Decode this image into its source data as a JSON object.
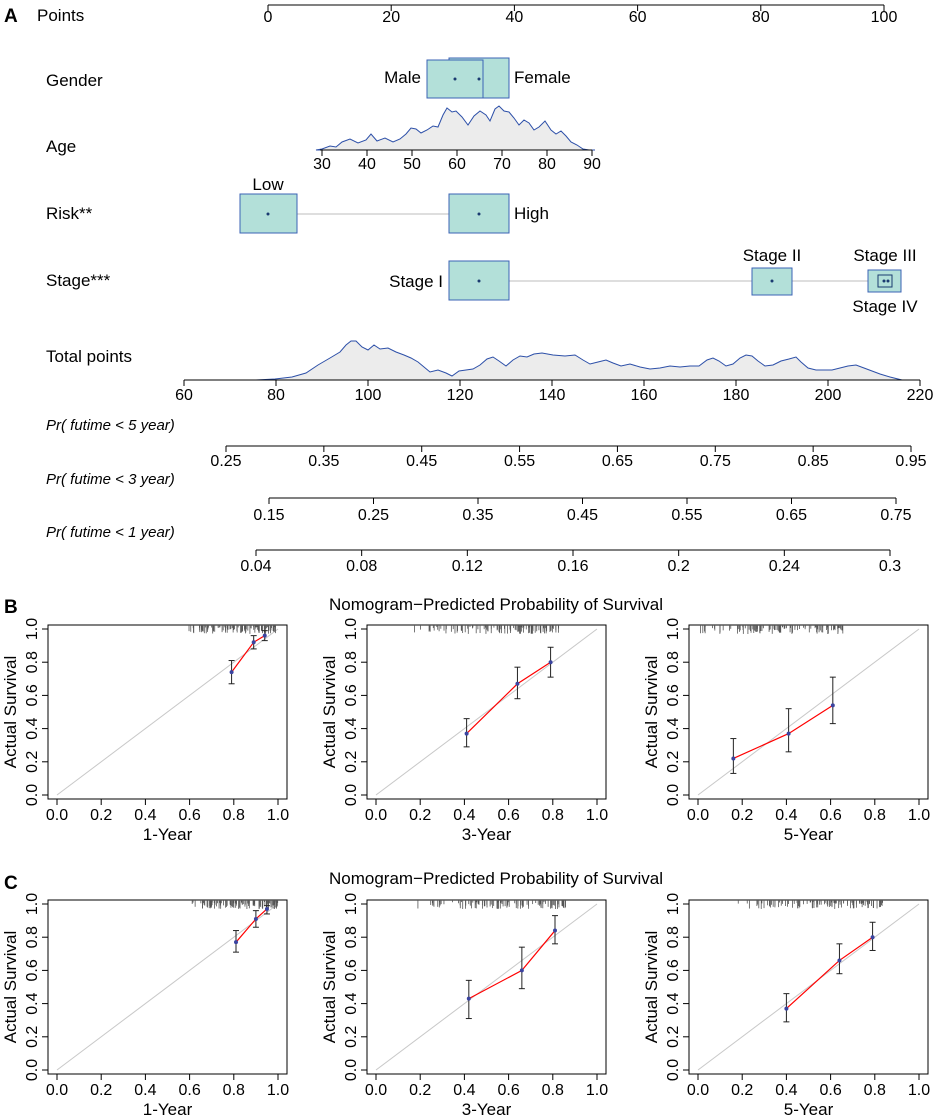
{
  "panel_letters": [
    "A",
    "B",
    "C"
  ],
  "nomogram": {
    "points_label": "Points",
    "points_ticks": [
      0,
      20,
      40,
      60,
      80,
      100
    ],
    "variables": [
      {
        "name": "Gender",
        "levels": [
          {
            "label": "Male",
            "points": 30
          },
          {
            "label": "Female",
            "points": 34
          }
        ]
      },
      {
        "name": "Age",
        "ticks": [
          30,
          40,
          50,
          60,
          70,
          80,
          90
        ],
        "points_range": [
          8,
          52
        ]
      },
      {
        "name": "Risk**",
        "levels": [
          {
            "label": "Low",
            "points": 0
          },
          {
            "label": "High",
            "points": 34
          }
        ]
      },
      {
        "name": "Stage***",
        "levels": [
          {
            "label": "Stage I",
            "points": 34
          },
          {
            "label": "Stage II",
            "points": 81
          },
          {
            "label": "Stage III",
            "points": 99
          },
          {
            "label": "Stage IV",
            "points": 100
          }
        ]
      }
    ],
    "total_points_label": "Total points",
    "total_points_ticks": [
      60,
      80,
      100,
      120,
      140,
      160,
      180,
      200,
      220
    ],
    "probabilities": [
      {
        "label": "Pr( futime < 5 year)",
        "ticks": [
          "0.25",
          "0.35",
          "0.45",
          "0.55",
          "0.65",
          "0.75",
          "0.85",
          "0.95"
        ]
      },
      {
        "label": "Pr( futime < 3 year)",
        "ticks": [
          "0.15",
          "0.25",
          "0.35",
          "0.45",
          "0.55",
          "0.65",
          "0.75"
        ]
      },
      {
        "label": "Pr( futime < 1 year)",
        "ticks": [
          "0.04",
          "0.08",
          "0.12",
          "0.16",
          "0.2",
          "0.24",
          "0.3"
        ]
      }
    ]
  },
  "calibration": {
    "row_title": "Nomogram−Predicted Probability of Survival",
    "ylabel": "Actual Survival",
    "axis_ticks": [
      "0.0",
      "0.2",
      "0.4",
      "0.6",
      "0.8",
      "1.0"
    ]
  },
  "chart_data": [
    {
      "type": "line",
      "panel": "B",
      "xlabel": "1-Year",
      "ylabel": "Actual Survival",
      "xlim": [
        0,
        1
      ],
      "ylim": [
        0,
        1
      ],
      "x": [
        0.79,
        0.89,
        0.94
      ],
      "y": [
        0.74,
        0.92,
        0.96
      ],
      "lower": [
        0.67,
        0.88,
        0.93
      ],
      "upper": [
        0.81,
        0.96,
        0.99
      ]
    },
    {
      "type": "line",
      "panel": "B",
      "xlabel": "3-Year",
      "ylabel": "Actual Survival",
      "xlim": [
        0,
        1
      ],
      "ylim": [
        0,
        1
      ],
      "x": [
        0.41,
        0.64,
        0.79
      ],
      "y": [
        0.37,
        0.67,
        0.8
      ],
      "lower": [
        0.29,
        0.58,
        0.71
      ],
      "upper": [
        0.46,
        0.77,
        0.89
      ]
    },
    {
      "type": "line",
      "panel": "B",
      "xlabel": "5-Year",
      "ylabel": "Actual Survival",
      "xlim": [
        0,
        1
      ],
      "ylim": [
        0,
        1
      ],
      "x": [
        0.16,
        0.41,
        0.61
      ],
      "y": [
        0.22,
        0.37,
        0.54
      ],
      "lower": [
        0.13,
        0.26,
        0.43
      ],
      "upper": [
        0.34,
        0.52,
        0.71
      ]
    },
    {
      "type": "line",
      "panel": "C",
      "xlabel": "1-Year",
      "ylabel": "Actual Survival",
      "xlim": [
        0,
        1
      ],
      "ylim": [
        0,
        1
      ],
      "x": [
        0.81,
        0.9,
        0.95
      ],
      "y": [
        0.77,
        0.91,
        0.97
      ],
      "lower": [
        0.71,
        0.86,
        0.94
      ],
      "upper": [
        0.84,
        0.96,
        0.99
      ]
    },
    {
      "type": "line",
      "panel": "C",
      "xlabel": "3-Year",
      "ylabel": "Actual Survival",
      "xlim": [
        0,
        1
      ],
      "ylim": [
        0,
        1
      ],
      "x": [
        0.42,
        0.66,
        0.81
      ],
      "y": [
        0.43,
        0.6,
        0.84
      ],
      "lower": [
        0.31,
        0.49,
        0.76
      ],
      "upper": [
        0.54,
        0.74,
        0.93
      ]
    },
    {
      "type": "line",
      "panel": "C",
      "xlabel": "5-Year",
      "ylabel": "Actual Survival",
      "xlim": [
        0,
        1
      ],
      "ylim": [
        0,
        1
      ],
      "x": [
        0.4,
        0.64,
        0.79
      ],
      "y": [
        0.37,
        0.66,
        0.8
      ],
      "lower": [
        0.29,
        0.58,
        0.72
      ],
      "upper": [
        0.46,
        0.76,
        0.89
      ]
    }
  ],
  "colors": {
    "box_fill": "#b3e0d9",
    "box_stroke": "#3b63b5",
    "density_line": "#2c4fa8",
    "density_fill": "#ececec",
    "calib_line": "#ff0000",
    "calib_point": "#3b44a0",
    "diagonal": "#c8c8c8"
  }
}
